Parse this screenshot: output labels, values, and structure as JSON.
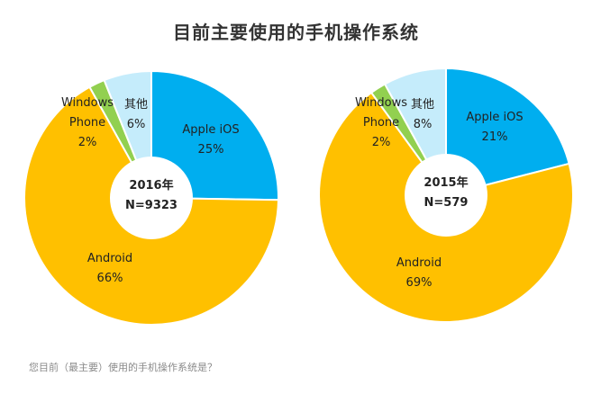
{
  "title": "目前主要使用的手机操作系统",
  "footnote": "您目前（最主要）使用的手机操作系统是？",
  "colors": {
    "ios": "#00aeef",
    "android": "#ffc000",
    "windows": "#92d050",
    "other": "#c5ecfb",
    "center": "#ffffff",
    "text": "#222222"
  },
  "chart_data": [
    {
      "type": "pie",
      "center_label": [
        "2016年",
        "N=9323"
      ],
      "categories": [
        "Apple iOS",
        "Android",
        "Windows Phone",
        "其他"
      ],
      "values": [
        25,
        66,
        2,
        6
      ],
      "labels": [
        [
          "Apple iOS",
          "25%"
        ],
        [
          "Android",
          "66%"
        ],
        [
          "Windows",
          "Phone",
          "2%"
        ],
        [
          "其他",
          "6%"
        ]
      ]
    },
    {
      "type": "pie",
      "center_label": [
        "2015年",
        "N=579"
      ],
      "categories": [
        "Apple iOS",
        "Android",
        "Windows Phone",
        "其他"
      ],
      "values": [
        21,
        69,
        2,
        8
      ],
      "labels": [
        [
          "Apple iOS",
          "21%"
        ],
        [
          "Android",
          "69%"
        ],
        [
          "Windows",
          "Phone",
          "2%"
        ],
        [
          "其他",
          "8%"
        ]
      ]
    }
  ]
}
